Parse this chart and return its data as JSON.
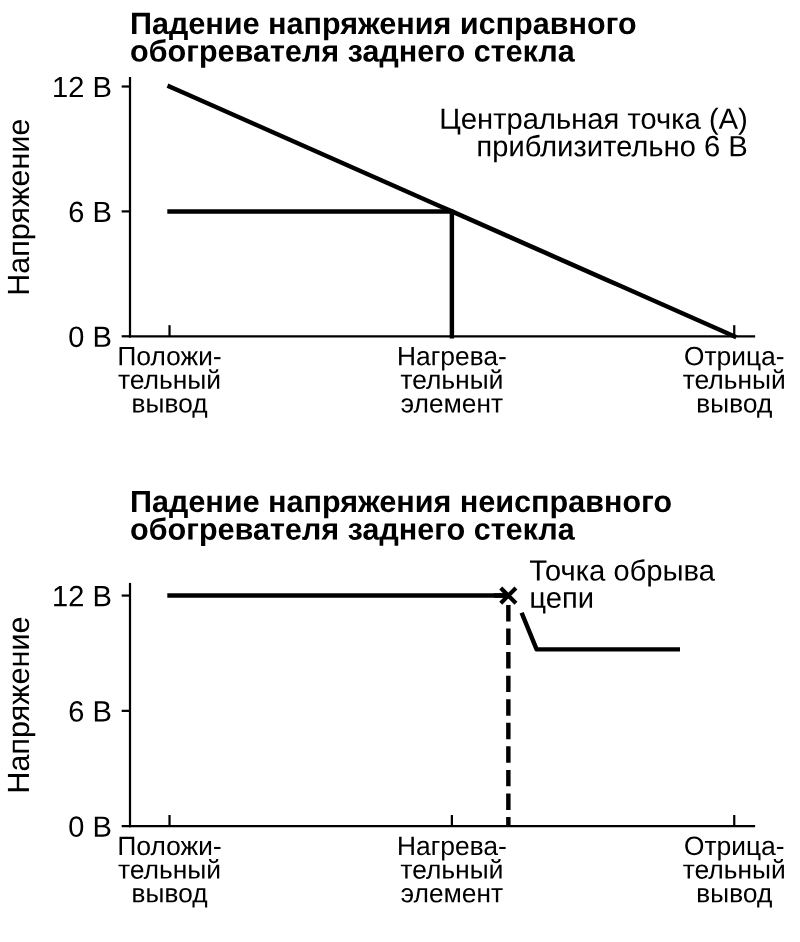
{
  "chart_data": [
    {
      "type": "line",
      "title": "Падение напряжения исправного\nобогревателя заднего стекла",
      "ylabel": "Напряжение",
      "annotations": [
        "Центральная точка (A)\nприблизительно 6 В"
      ],
      "categories": [
        "Положи-\nтельный\nвывод",
        null,
        null,
        null,
        null,
        null,
        null,
        null,
        null,
        null,
        null,
        null,
        null,
        null,
        null,
        null,
        null,
        null,
        null,
        null,
        "Нагрева-\nтельный\nэлемент",
        null,
        null,
        null,
        null,
        null,
        null,
        null,
        null,
        null,
        null,
        null,
        null,
        null,
        null,
        null,
        null,
        null,
        null,
        null,
        "Отрица-\nтельный\nвывод"
      ],
      "series": [
        {
          "color": "#000000",
          "values": [
            12,
            11.7,
            11.4,
            11.1,
            10.8,
            10.5,
            10.2,
            9.9,
            9.6,
            9.3,
            9,
            8.7,
            8.4,
            8.1,
            7.8,
            7.5,
            7.2,
            6.9,
            6.6,
            6.3,
            6,
            5.7,
            5.4,
            5.1,
            4.8,
            4.5,
            4.2,
            3.9,
            3.6,
            3.3,
            3,
            2.7,
            2.4,
            2.1,
            1.8,
            1.5,
            1.2,
            0.9,
            0.6,
            0.3,
            0
          ]
        },
        {
          "type": "step",
          "color": "#000000",
          "values": [
            6,
            6,
            6,
            6,
            6,
            6,
            6,
            6,
            6,
            6,
            6,
            6,
            6,
            6,
            6,
            6,
            6,
            6,
            6,
            6,
            0,
            null,
            null,
            null,
            null,
            null,
            null,
            null,
            null,
            null,
            null,
            null,
            null,
            null,
            null,
            null,
            null,
            null,
            null,
            null,
            null
          ]
        }
      ],
      "ylim": [
        0,
        12.4
      ],
      "yticks": [
        {
          "value": 0,
          "label": "0 В"
        },
        {
          "value": 6,
          "label": "6 В"
        },
        {
          "value": 12,
          "label": "12 В"
        }
      ]
    },
    {
      "type": "line",
      "title": "Падение напряжения неисправного\nобогревателя заднего стекла",
      "ylabel": "Напряжение",
      "annotations": [
        "Точка обрыва\nцепи"
      ],
      "categories": [
        "Положи-\nтельный\nвывод",
        null,
        null,
        null,
        null,
        null,
        null,
        null,
        null,
        null,
        null,
        null,
        null,
        null,
        null,
        null,
        null,
        null,
        null,
        null,
        "Нагрева-\nтельный\nэлемент",
        null,
        null,
        null,
        null,
        null,
        null,
        null,
        null,
        null,
        null,
        null,
        null,
        null,
        null,
        null,
        null,
        null,
        null,
        null,
        "Отрица-\nтельный\nвывод"
      ],
      "series": [
        {
          "color": "#000000",
          "values": [
            12,
            12,
            12,
            12,
            12,
            12,
            12,
            12,
            12,
            12,
            12,
            12,
            12,
            12,
            12,
            12,
            12,
            12,
            12,
            12,
            12,
            12,
            12,
            12,
            12,
            null,
            null,
            null,
            null,
            null,
            null,
            null,
            null,
            null,
            null,
            null,
            null,
            null,
            null,
            null,
            null
          ]
        },
        {
          "type": "step",
          "color": "#000000",
          "line_style": "dashed",
          "values": [
            null,
            null,
            null,
            null,
            null,
            null,
            null,
            null,
            null,
            null,
            null,
            null,
            null,
            null,
            null,
            null,
            null,
            null,
            null,
            null,
            null,
            null,
            null,
            12,
            0,
            null,
            null,
            null,
            null,
            null,
            null,
            null,
            null,
            null,
            null,
            null,
            null,
            null,
            null,
            null,
            null
          ]
        },
        {
          "color": "#000000",
          "values": [
            null,
            null,
            null,
            null,
            null,
            null,
            null,
            null,
            null,
            null,
            null,
            null,
            null,
            null,
            null,
            null,
            null,
            null,
            null,
            null,
            null,
            null,
            null,
            null,
            null,
            11,
            9.2,
            9.2,
            9.2,
            9.2,
            9.2,
            9.2,
            9.2,
            9.2,
            9.2,
            9.2,
            9.2,
            null,
            null,
            null,
            null
          ]
        },
        {
          "type": "scatter",
          "color": "#000000",
          "marker": "cross",
          "values": [
            null,
            null,
            null,
            null,
            null,
            null,
            null,
            null,
            null,
            null,
            null,
            null,
            null,
            null,
            null,
            null,
            null,
            null,
            null,
            null,
            null,
            null,
            null,
            null,
            12,
            null,
            null,
            null,
            null,
            null,
            null,
            null,
            null,
            null,
            null,
            null,
            null,
            null,
            null,
            null,
            null
          ]
        }
      ],
      "ylim": [
        0,
        12.6
      ],
      "yticks": [
        {
          "value": 0,
          "label": "0 В"
        },
        {
          "value": 6,
          "label": "6 В"
        },
        {
          "value": 12,
          "label": "12 В"
        }
      ]
    }
  ]
}
